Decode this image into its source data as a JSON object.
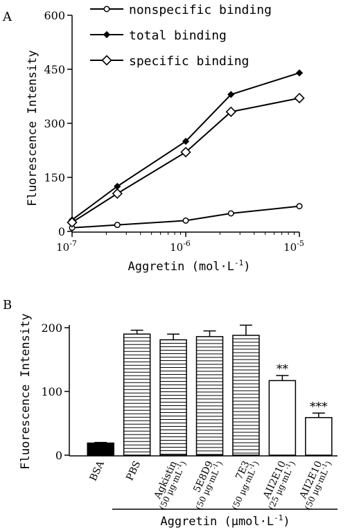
{
  "chart_data": [
    {
      "panel_label": "A",
      "type": "line",
      "ylabel": "Fluorescence Intensity",
      "xlabel_base": "Aggretin (mol·L",
      "xlabel_sup": "-1",
      "xlabel_close": ")",
      "x_scale": "log",
      "xlim": [
        1e-07,
        1e-05
      ],
      "ylim": [
        0,
        600
      ],
      "yticks": [
        "0",
        "150",
        "300",
        "450",
        "600"
      ],
      "xticks": [
        {
          "base": "10",
          "exp": "-7",
          "value": 1e-07
        },
        {
          "base": "10",
          "exp": "-6",
          "value": 1e-06
        },
        {
          "base": "10",
          "exp": "-5",
          "value": 1e-05
        }
      ],
      "legend_position": "top-right",
      "x": [
        1e-07,
        2.5e-07,
        1e-06,
        2.5e-06,
        1e-05
      ],
      "series": [
        {
          "name": "nonspecific binding",
          "marker": "open-circle",
          "values": [
            10,
            18,
            30,
            50,
            70
          ]
        },
        {
          "name": "total binding",
          "marker": "filled-diamond",
          "values": [
            32,
            125,
            250,
            380,
            440
          ]
        },
        {
          "name": "specific binding",
          "marker": "open-diamond",
          "values": [
            25,
            105,
            220,
            332,
            370
          ]
        }
      ]
    },
    {
      "panel_label": "B",
      "type": "bar",
      "ylabel": "Fluorescence Intensity",
      "ylim": [
        0,
        200
      ],
      "yticks": [
        "0",
        "100",
        "200"
      ],
      "categories": [
        {
          "name": "BSA",
          "note": ""
        },
        {
          "name": "PBS",
          "note": ""
        },
        {
          "name": "Agkistin",
          "note": "(50 μg·mL",
          "note_sup": "-1",
          "note_close": ")"
        },
        {
          "name": "5E8D9",
          "note": "(50 μg·mL",
          "note_sup": "-1",
          "note_close": ")"
        },
        {
          "name": "7E3",
          "note": "(50 μg·mL",
          "note_sup": "-1",
          "note_close": ")"
        },
        {
          "name": "AII2E10",
          "note": "(25 μg·mL",
          "note_sup": "-1",
          "note_close": ")"
        },
        {
          "name": "AII2E10",
          "note": "(50 μg·mL",
          "note_sup": "-1",
          "note_close": ")"
        }
      ],
      "values": [
        19,
        190,
        181,
        186,
        188,
        117,
        59
      ],
      "errors": [
        1,
        6,
        9,
        9,
        16,
        8,
        7
      ],
      "fills": [
        "solid",
        "hatched",
        "hatched",
        "hatched",
        "hatched",
        "open",
        "open"
      ],
      "significance": [
        "",
        "",
        "",
        "",
        "",
        "**",
        "***"
      ],
      "group_label_base": "Aggretin (μmol·L",
      "group_label_sup": "-1",
      "group_label_close": ")"
    }
  ],
  "colors": {
    "ink": "#000000",
    "background": "#ffffff"
  }
}
